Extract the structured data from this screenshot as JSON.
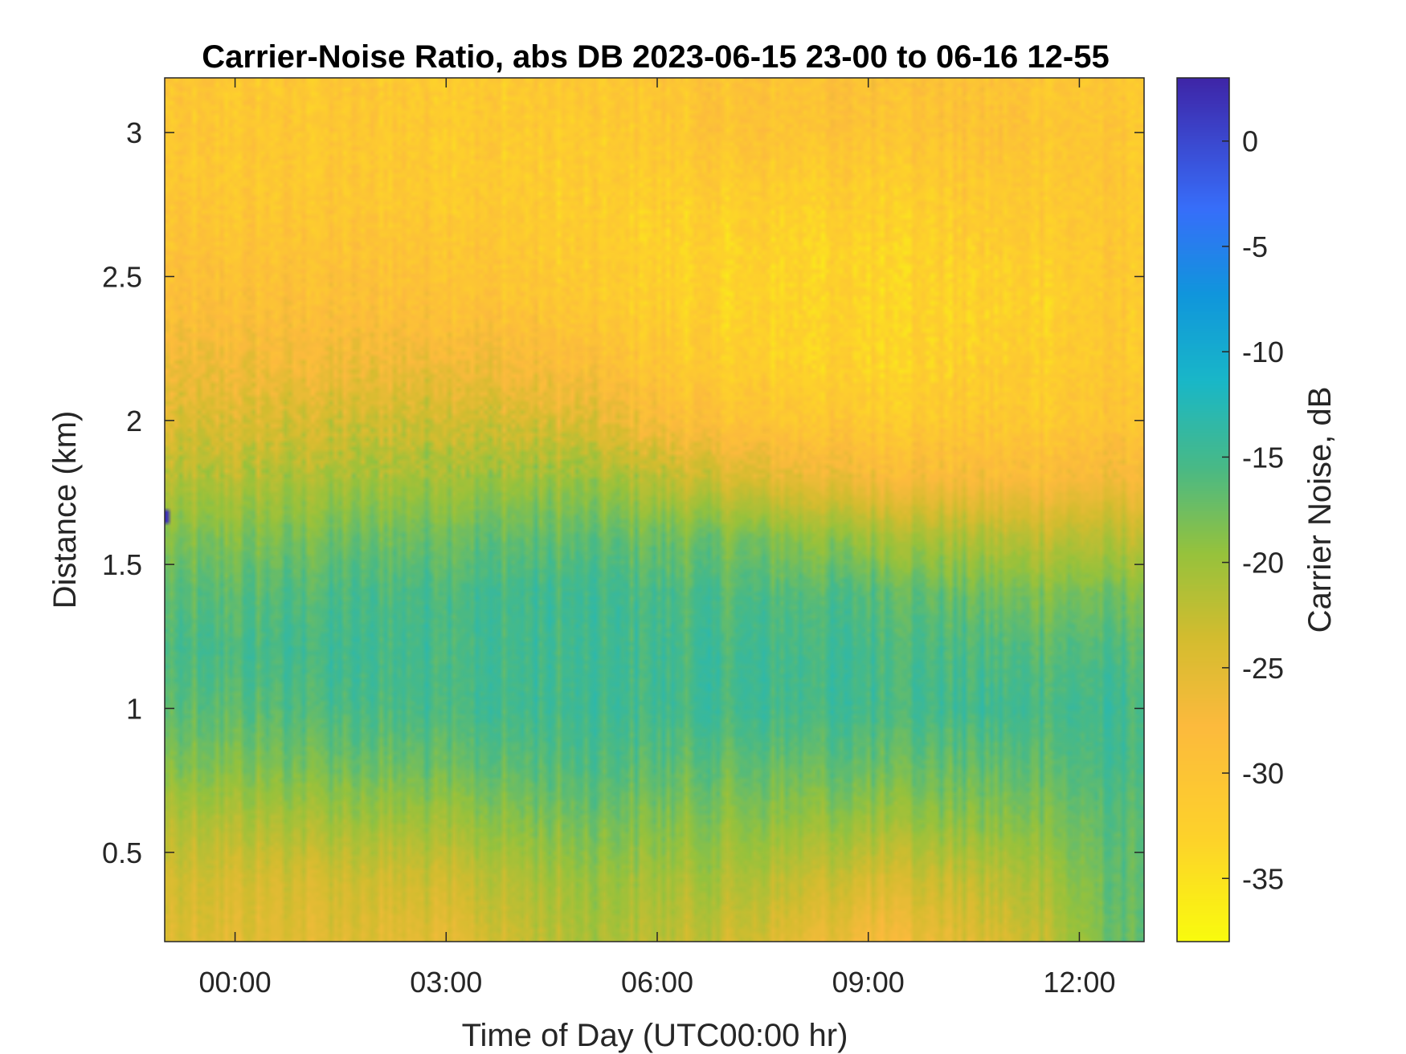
{
  "chart_data": {
    "type": "heatmap",
    "title": "Carrier-Noise Ratio, abs DB 2023-06-15 23-00 to 06-16 12-55",
    "xlabel": "Time of Day (UTC00:00 hr)",
    "ylabel": "Distance (km)",
    "colorbar_label": "Carrier Noise, dB",
    "colormap": "parula",
    "colormap_direction": "reversed",
    "xlim_hours": [
      -1.0,
      12.92
    ],
    "ylim_km": [
      0.19,
      3.19
    ],
    "clim_db": [
      -38,
      3
    ],
    "x_ticks": [
      {
        "value": 0,
        "label": "00:00"
      },
      {
        "value": 3,
        "label": "03:00"
      },
      {
        "value": 6,
        "label": "06:00"
      },
      {
        "value": 9,
        "label": "09:00"
      },
      {
        "value": 12,
        "label": "12:00"
      }
    ],
    "y_ticks": [
      {
        "value": 0.5,
        "label": "0.5"
      },
      {
        "value": 1,
        "label": "1"
      },
      {
        "value": 1.5,
        "label": "1.5"
      },
      {
        "value": 2,
        "label": "2"
      },
      {
        "value": 2.5,
        "label": "2.5"
      },
      {
        "value": 3,
        "label": "3"
      }
    ],
    "c_ticks": [
      {
        "value": 0,
        "label": "0"
      },
      {
        "value": -5,
        "label": "-5"
      },
      {
        "value": -10,
        "label": "-10"
      },
      {
        "value": -15,
        "label": "-15"
      },
      {
        "value": -20,
        "label": "-20"
      },
      {
        "value": -25,
        "label": "-25"
      },
      {
        "value": -30,
        "label": "-30"
      },
      {
        "value": -35,
        "label": "-35"
      }
    ],
    "approx_profile_db": {
      "distance_km": [
        0.2,
        0.4,
        0.6,
        0.8,
        1.0,
        1.2,
        1.4,
        1.6,
        1.8,
        2.0,
        2.2,
        2.4,
        2.6,
        2.8,
        3.0,
        3.2
      ],
      "times_h": [
        -1,
        1,
        3,
        5,
        7,
        9,
        11,
        12.9
      ],
      "values": [
        [
          -25,
          -24,
          -22,
          -19,
          -17,
          -16,
          -17,
          -19,
          -22,
          -25,
          -27,
          -29,
          -30,
          -31,
          -31,
          -31
        ],
        [
          -25,
          -24,
          -21,
          -18,
          -16,
          -15,
          -16,
          -18,
          -21,
          -24,
          -27,
          -29,
          -30,
          -31,
          -31,
          -31
        ],
        [
          -25,
          -23,
          -20,
          -17,
          -15,
          -15,
          -15,
          -17,
          -20,
          -23,
          -26,
          -29,
          -30,
          -31,
          -31,
          -31
        ],
        [
          -21,
          -20,
          -18,
          -16,
          -15,
          -15,
          -15,
          -17,
          -20,
          -25,
          -29,
          -31,
          -32,
          -32,
          -32,
          -31
        ],
        [
          -23,
          -21,
          -19,
          -17,
          -15,
          -15,
          -16,
          -18,
          -24,
          -30,
          -32,
          -33,
          -33,
          -32,
          -30,
          -30
        ],
        [
          -27,
          -24,
          -20,
          -17,
          -15,
          -15,
          -16,
          -20,
          -27,
          -31,
          -33,
          -33,
          -33,
          -32,
          -30,
          -29
        ],
        [
          -24,
          -22,
          -19,
          -17,
          -15,
          -16,
          -18,
          -22,
          -28,
          -31,
          -32,
          -33,
          -32,
          -31,
          -30,
          -30
        ],
        [
          -16,
          -16,
          -16,
          -15,
          -15,
          -16,
          -18,
          -22,
          -27,
          -30,
          -31,
          -31,
          -31,
          -31,
          -31,
          -31
        ]
      ]
    },
    "anomaly": {
      "time_h": -1.0,
      "distance_km": 1.67,
      "value_db": 2
    }
  }
}
